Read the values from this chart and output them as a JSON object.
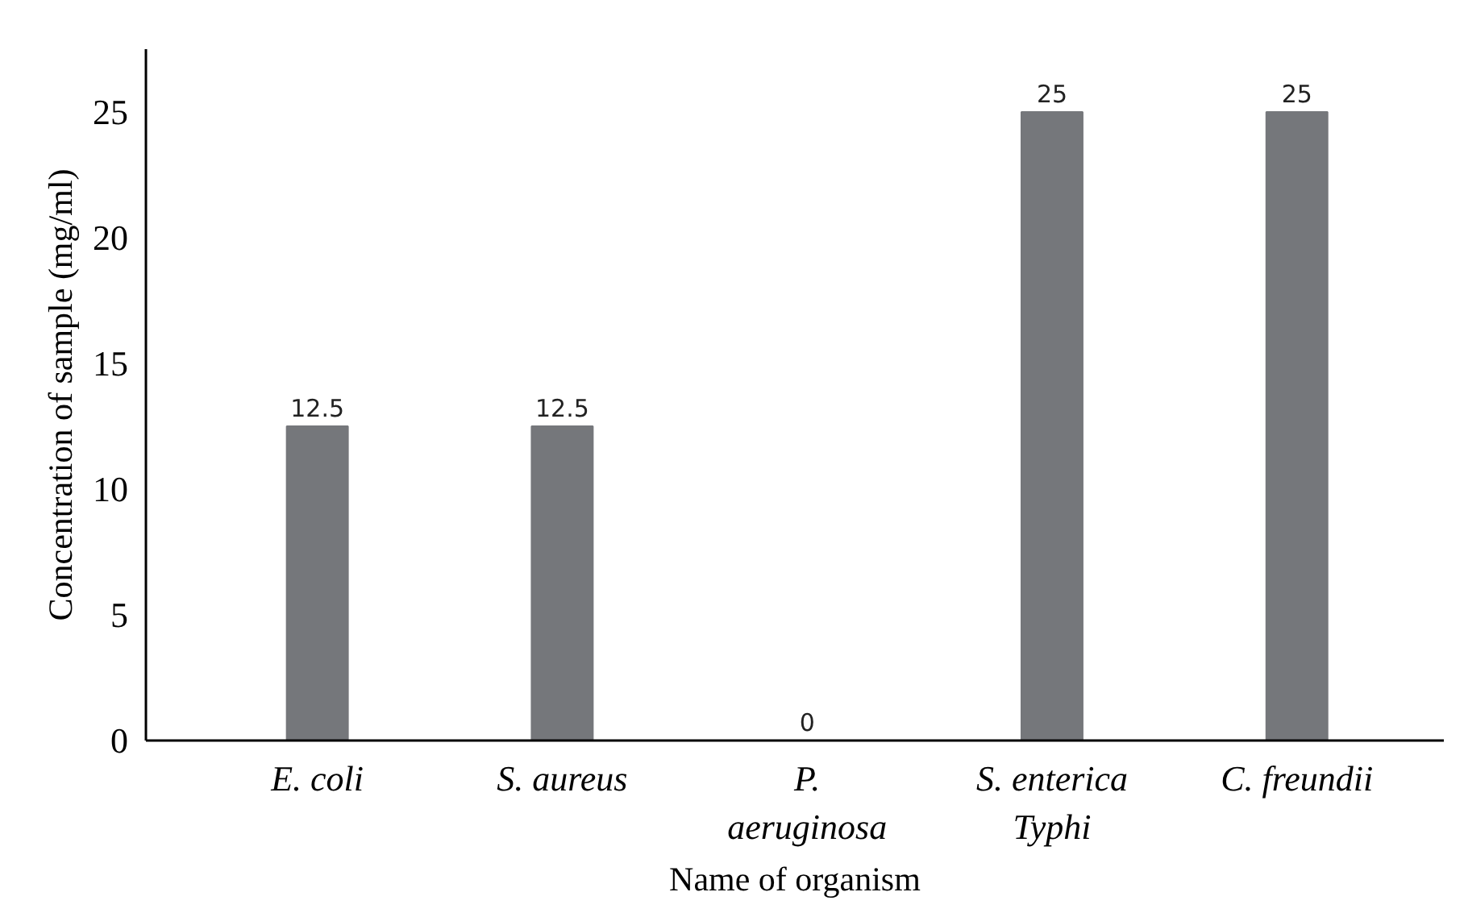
{
  "chart_data": {
    "type": "bar",
    "xlabel": "Name of organism",
    "ylabel": "Concentration of sample (mg/ml)",
    "categories": [
      "E. coli",
      "S. aureus",
      "P. aeruginosa",
      "S. enterica Typhi",
      "C. freundii"
    ],
    "values": [
      12.5,
      12.5,
      0,
      25,
      25
    ],
    "color": "#75777b",
    "ylim": [
      0,
      27.5
    ],
    "yticks": [
      0,
      5,
      10,
      15,
      20,
      25
    ],
    "grid": false,
    "data_labels": true
  }
}
